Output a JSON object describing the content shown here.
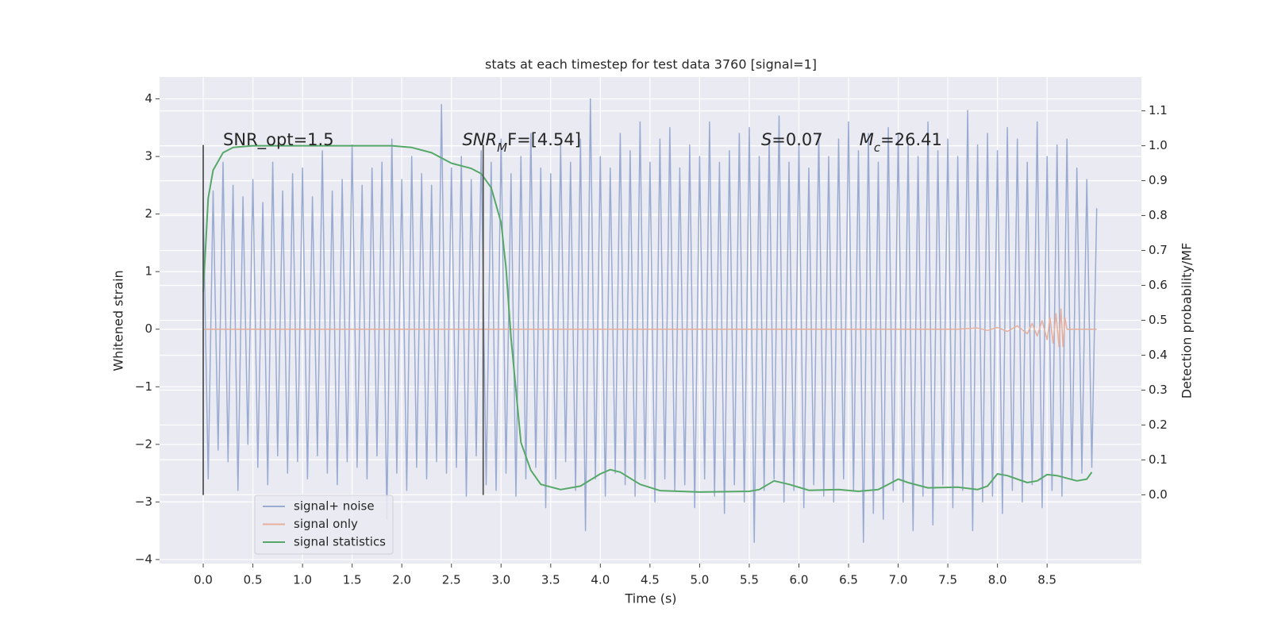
{
  "chart_data": {
    "type": "line",
    "title": "stats at each timestep for test data 3760 [signal=1]",
    "xlabel": "Time (s)",
    "ylabel": "Whitened strain",
    "y2label": "Detection probability/MF",
    "xlim": [
      -0.44,
      9.45
    ],
    "ylim": [
      -4.07,
      4.38
    ],
    "y2lim": [
      -0.197,
      1.197
    ],
    "xticks": [
      {
        "value": 0,
        "label": "0.0"
      },
      0.5,
      {
        "value": 1,
        "label": "1.0"
      },
      1.5,
      {
        "value": 2,
        "label": "2.0"
      },
      2.5,
      {
        "value": 3,
        "label": "3.0"
      },
      3.5,
      {
        "value": 4,
        "label": "4.0"
      },
      4.5,
      {
        "value": 5,
        "label": "5.0"
      },
      5.5,
      {
        "value": 6,
        "label": "6.0"
      },
      6.5,
      {
        "value": 7,
        "label": "7.0"
      },
      7.5,
      {
        "value": 8,
        "label": "8.0"
      },
      8.5
    ],
    "yticks": [
      {
        "value": -4,
        "label": "−4"
      },
      {
        "value": -3,
        "label": "−3"
      },
      {
        "value": -2,
        "label": "−2"
      },
      {
        "value": -1,
        "label": "−1"
      },
      0,
      1,
      2,
      3,
      4
    ],
    "y2ticks": [
      {
        "value": 0,
        "label": "0.0"
      },
      0.1,
      0.2,
      0.3,
      0.4,
      0.5,
      0.6,
      0.7,
      0.8,
      0.9,
      {
        "value": 1,
        "label": "1.0"
      },
      1.1
    ],
    "grid": true,
    "legend": "lower left",
    "series": [
      {
        "name": "signal+ noise",
        "color": "#9aabd2",
        "x": [
          0,
          0.05,
          0.1,
          0.15,
          0.2,
          0.25,
          0.3,
          0.35,
          0.4,
          0.45,
          0.5,
          0.55,
          0.6,
          0.65,
          0.7,
          0.75,
          0.8,
          0.85,
          0.9,
          0.95,
          1,
          1.05,
          1.1,
          1.15,
          1.2,
          1.25,
          1.3,
          1.35,
          1.4,
          1.45,
          1.5,
          1.55,
          1.6,
          1.65,
          1.7,
          1.75,
          1.8,
          1.85,
          1.9,
          1.95,
          2,
          2.05,
          2.1,
          2.15,
          2.2,
          2.25,
          2.3,
          2.35,
          2.4,
          2.45,
          2.5,
          2.55,
          2.6,
          2.65,
          2.7,
          2.75,
          2.8,
          2.85,
          2.9,
          2.95,
          3,
          3.05,
          3.1,
          3.15,
          3.2,
          3.25,
          3.3,
          3.35,
          3.4,
          3.45,
          3.5,
          3.55,
          3.6,
          3.65,
          3.7,
          3.75,
          3.8,
          3.85,
          3.9,
          3.95,
          4,
          4.05,
          4.1,
          4.15,
          4.2,
          4.25,
          4.3,
          4.35,
          4.4,
          4.45,
          4.5,
          4.55,
          4.6,
          4.65,
          4.7,
          4.75,
          4.8,
          4.85,
          4.9,
          4.95,
          5,
          5.05,
          5.1,
          5.15,
          5.2,
          5.25,
          5.3,
          5.35,
          5.4,
          5.45,
          5.5,
          5.55,
          5.6,
          5.65,
          5.7,
          5.75,
          5.8,
          5.85,
          5.9,
          5.95,
          6,
          6.05,
          6.1,
          6.15,
          6.2,
          6.25,
          6.3,
          6.35,
          6.4,
          6.45,
          6.5,
          6.55,
          6.6,
          6.65,
          6.7,
          6.75,
          6.8,
          6.85,
          6.9,
          6.95,
          7,
          7.05,
          7.1,
          7.15,
          7.2,
          7.25,
          7.3,
          7.35,
          7.4,
          7.45,
          7.5,
          7.55,
          7.6,
          7.65,
          7.7,
          7.75,
          7.8,
          7.85,
          7.9,
          7.95,
          8,
          8.05,
          8.1,
          8.15,
          8.2,
          8.25,
          8.3,
          8.35,
          8.4,
          8.45,
          8.5,
          8.55,
          8.6,
          8.65,
          8.7,
          8.75,
          8.8,
          8.85,
          8.9,
          8.95,
          9
        ],
        "values": [
          2.2,
          -2.6,
          2.4,
          -2.1,
          2.9,
          -2.3,
          2.5,
          -2.8,
          2.3,
          -2.0,
          2.6,
          -2.4,
          2.2,
          -2.7,
          2.9,
          -2.2,
          2.4,
          -2.5,
          2.7,
          -2.3,
          2.8,
          -2.6,
          2.3,
          -2.2,
          3.1,
          -2.5,
          2.4,
          -2.7,
          2.6,
          -2.3,
          3.2,
          -2.4,
          2.5,
          -2.6,
          2.8,
          -2.2,
          2.9,
          -3.3,
          3.3,
          -2.5,
          2.6,
          -2.8,
          3.0,
          -2.4,
          2.7,
          -2.6,
          2.5,
          -2.3,
          3.9,
          -2.5,
          2.8,
          -2.4,
          3.0,
          -2.9,
          2.6,
          -2.2,
          3.1,
          -2.7,
          2.9,
          -2.8,
          3.3,
          -2.5,
          2.7,
          -2.9,
          3.0,
          -2.6,
          3.4,
          -2.4,
          2.8,
          -3.1,
          2.7,
          -2.6,
          3.2,
          -2.3,
          2.9,
          -2.8,
          3.3,
          -3.5,
          4.0,
          -2.6,
          3.0,
          -2.9,
          2.8,
          -2.5,
          3.4,
          -2.7,
          3.1,
          -2.9,
          3.6,
          -2.6,
          2.9,
          -3.0,
          3.3,
          -2.6,
          3.5,
          -2.8,
          2.8,
          -2.7,
          3.2,
          -3.1,
          3.0,
          -2.6,
          3.6,
          -2.9,
          2.9,
          -3.2,
          3.1,
          -2.7,
          3.4,
          -3.0,
          3.5,
          -3.7,
          3.0,
          -2.8,
          3.3,
          -2.6,
          3.7,
          -3.0,
          2.9,
          -2.8,
          3.2,
          -3.1,
          2.8,
          -2.7,
          3.4,
          -2.9,
          3.0,
          -3.0,
          3.3,
          -2.6,
          3.6,
          -2.8,
          3.1,
          -3.7,
          3.4,
          -3.2,
          2.9,
          -3.3,
          3.5,
          -2.8,
          3.4,
          -3.0,
          3.2,
          -3.5,
          3.0,
          -2.9,
          3.6,
          -3.4,
          3.1,
          -2.7,
          3.3,
          -3.1,
          3.0,
          -2.8,
          3.8,
          -3.5,
          3.2,
          -3.0,
          3.4,
          -2.9,
          3.1,
          -3.2,
          3.5,
          -2.8,
          3.3,
          -3.0,
          2.9,
          -2.7,
          3.6,
          -3.1,
          3.0,
          -2.8,
          3.2,
          -2.9,
          3.3,
          -2.6,
          2.8,
          -2.5,
          2.6,
          -2.4,
          2.1
        ]
      },
      {
        "name": "signal only",
        "color": "#e6b09c",
        "x": [
          0,
          7.6,
          7.8,
          7.9,
          8.0,
          8.1,
          8.2,
          8.3,
          8.35,
          8.4,
          8.45,
          8.5,
          8.53,
          8.56,
          8.59,
          8.62,
          8.64,
          8.66,
          8.68,
          8.7,
          9.0
        ],
        "values": [
          0,
          0,
          0.02,
          -0.02,
          0.03,
          -0.04,
          0.06,
          -0.08,
          0.1,
          -0.12,
          0.15,
          -0.18,
          0.2,
          -0.24,
          0.27,
          -0.3,
          0.35,
          -0.3,
          0.2,
          0,
          0
        ]
      },
      {
        "name": "signal statistics",
        "color": "#55a868",
        "axis": "y2",
        "x": [
          0,
          0.05,
          0.1,
          0.2,
          0.3,
          0.5,
          1.0,
          1.5,
          1.9,
          2.1,
          2.3,
          2.5,
          2.7,
          2.8,
          2.9,
          3.0,
          3.05,
          3.1,
          3.15,
          3.2,
          3.3,
          3.4,
          3.6,
          3.8,
          4.0,
          4.1,
          4.2,
          4.4,
          4.6,
          5.0,
          5.5,
          5.6,
          5.75,
          5.9,
          6.1,
          6.4,
          6.6,
          6.8,
          6.9,
          7.0,
          7.1,
          7.3,
          7.6,
          7.8,
          7.9,
          8.0,
          8.1,
          8.3,
          8.4,
          8.5,
          8.6,
          8.8,
          8.9,
          8.95
        ],
        "values": [
          0.58,
          0.85,
          0.93,
          0.98,
          0.995,
          1.0,
          1.0,
          1.0,
          1.0,
          0.995,
          0.98,
          0.95,
          0.935,
          0.92,
          0.88,
          0.78,
          0.65,
          0.45,
          0.3,
          0.15,
          0.07,
          0.03,
          0.015,
          0.025,
          0.06,
          0.072,
          0.065,
          0.03,
          0.012,
          0.008,
          0.01,
          0.015,
          0.04,
          0.03,
          0.013,
          0.015,
          0.01,
          0.015,
          0.03,
          0.045,
          0.035,
          0.02,
          0.022,
          0.015,
          0.025,
          0.06,
          0.055,
          0.035,
          0.04,
          0.058,
          0.055,
          0.04,
          0.045,
          0.065
        ]
      }
    ],
    "vlines": [
      {
        "x": 0,
        "y": [
          -2.88,
          3.2
        ]
      },
      {
        "x": 2.82,
        "y": [
          -2.88,
          3.2
        ]
      }
    ],
    "annotations": [
      {
        "x": 0.2,
        "y": 3.28,
        "segments": [
          {
            "text": "SNR_opt=1.5"
          }
        ]
      },
      {
        "x": 2.61,
        "y": 3.28,
        "segments": [
          {
            "text": "SNR",
            "style": "italic"
          },
          {
            "text": "M",
            "style": "italic-sub"
          },
          {
            "text": "F=[4.54]"
          }
        ]
      },
      {
        "x": 5.62,
        "y": 3.28,
        "segments": [
          {
            "text": "S",
            "style": "italic"
          },
          {
            "text": "=0.07"
          }
        ]
      },
      {
        "x": 6.61,
        "y": 3.28,
        "segments": [
          {
            "text": "M",
            "style": "italic"
          },
          {
            "text": "c",
            "style": "italic-sub"
          },
          {
            "text": "=26.41"
          }
        ]
      }
    ]
  }
}
